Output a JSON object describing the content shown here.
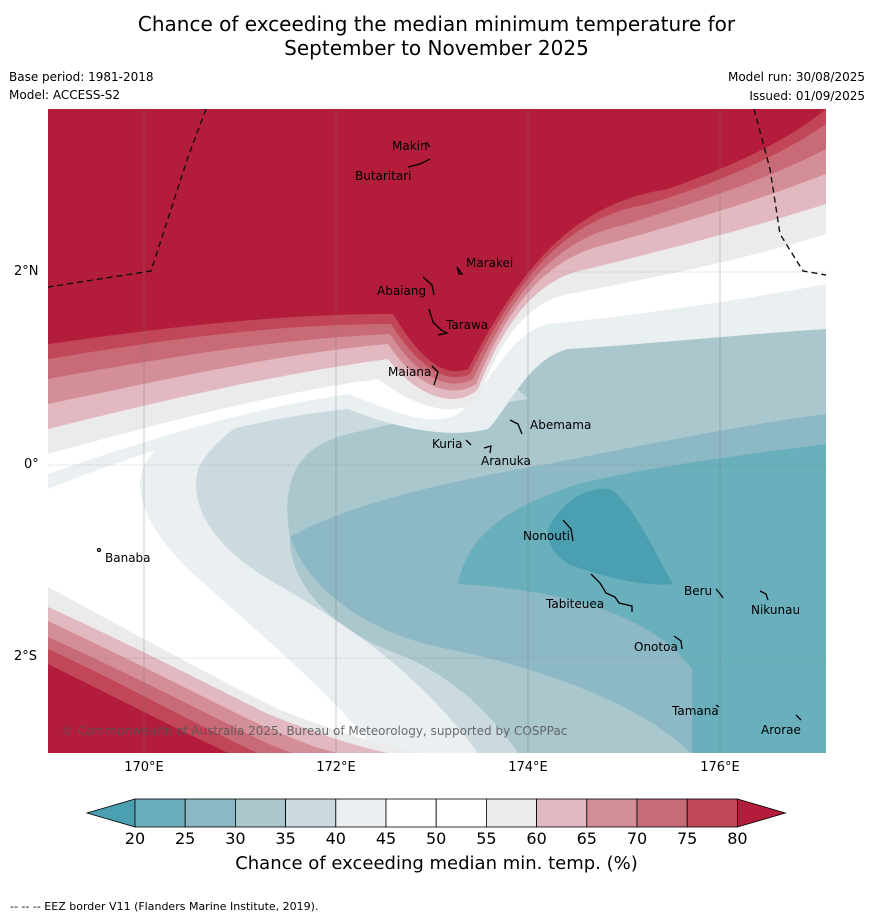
{
  "title_line1": "Chance of exceeding the median minimum temperature for",
  "title_line2": "September to November 2025",
  "base_period": "Base period: 1981-2018",
  "model": "Model: ACCESS-S2",
  "model_run": "Model run: 30/08/2025",
  "issued": "Issued: 01/09/2025",
  "lat_labels": [
    "2°N",
    "0°",
    "2°S"
  ],
  "lon_labels": [
    "170°E",
    "172°E",
    "174°E",
    "176°E"
  ],
  "islands": [
    "Makin",
    "Butaritari",
    "Marakei",
    "Abaiang",
    "Tarawa",
    "Maiana",
    "Abemama",
    "Kuria",
    "Aranuka",
    "Banaba",
    "Nonouti",
    "Beru",
    "Tabiteuea",
    "Nikunau",
    "Onotoa",
    "Tamana",
    "Arorae"
  ],
  "copyright": "© Commonwealth of Australia 2025, Bureau of Meteorology, supported by COSPPac",
  "colorbar": {
    "ticks": [
      "20",
      "25",
      "30",
      "35",
      "40",
      "45",
      "50",
      "55",
      "60",
      "65",
      "70",
      "75",
      "80"
    ],
    "colors": [
      "#4a9fb0",
      "#6aafbc",
      "#8db8c5",
      "#aac7cd",
      "#cbdadf",
      "#eaeff1",
      "#ffffff",
      "#ffffff",
      "#ecebec",
      "#e2b9c0",
      "#d48e98",
      "#c96a77",
      "#c04658",
      "#b31c3a"
    ],
    "label": "Chance of exceeding median min. temp. (%)"
  },
  "footer": "--  --  -- EEZ border V11 (Flanders Marine Institute, 2019)."
}
